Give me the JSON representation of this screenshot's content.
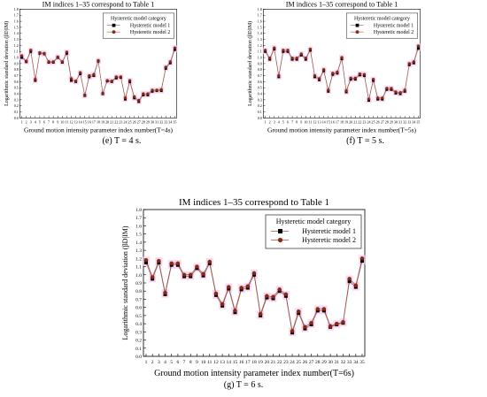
{
  "theme": {
    "series1_color": "#000000",
    "series2_color": "#8b2b0e",
    "line_color": "#a05050",
    "highlight_color": "#f7c8f0"
  },
  "chart_data": [
    {
      "type": "line",
      "title": "IM indices 1–35 correspond to Table 1",
      "xlabel": "Ground motion intensity parameter index number(T=4s)",
      "ylabel": "Logarithmic standard deviation (βD|IM)",
      "caption": "(e) T = 4 s.",
      "legend_title": "Hysteretic model category",
      "legend_position": "top-right",
      "ylim": [
        0,
        1.8
      ],
      "yticks": [
        "0.0",
        "0.1",
        "0.2",
        "0.3",
        "0.4",
        "0.5",
        "0.6",
        "0.7",
        "0.8",
        "0.9",
        "1.0",
        "1.1",
        "1.2",
        "1.3",
        "1.4",
        "1.5",
        "1.6",
        "1.7",
        "1.8"
      ],
      "x": [
        1,
        2,
        3,
        4,
        5,
        6,
        7,
        8,
        9,
        10,
        11,
        12,
        13,
        14,
        15,
        16,
        17,
        18,
        19,
        20,
        21,
        22,
        23,
        24,
        25,
        26,
        27,
        28,
        29,
        30,
        31,
        32,
        33,
        34,
        35
      ],
      "series": [
        {
          "name": "Hysteretic model 1",
          "marker": "square",
          "values": [
            1.0,
            0.93,
            1.1,
            0.62,
            1.07,
            1.06,
            0.92,
            0.92,
            1.0,
            0.92,
            1.07,
            0.62,
            0.6,
            0.73,
            0.37,
            0.68,
            0.7,
            0.94,
            0.4,
            0.61,
            0.6,
            0.66,
            0.67,
            0.31,
            0.6,
            0.33,
            0.27,
            0.38,
            0.38,
            0.44,
            0.45,
            0.45,
            0.82,
            0.91,
            1.13
          ]
        },
        {
          "name": "Hysteretic model 2",
          "marker": "circle",
          "values": [
            1.03,
            0.94,
            1.12,
            0.64,
            1.08,
            1.07,
            0.93,
            0.93,
            1.01,
            0.93,
            1.09,
            0.65,
            0.61,
            0.75,
            0.38,
            0.7,
            0.72,
            0.95,
            0.41,
            0.62,
            0.61,
            0.68,
            0.68,
            0.33,
            0.62,
            0.35,
            0.29,
            0.4,
            0.4,
            0.46,
            0.46,
            0.47,
            0.84,
            0.93,
            1.16
          ]
        }
      ]
    },
    {
      "type": "line",
      "title": "IM indices 1–35 correspond to Table 1",
      "xlabel": "Ground motion intensity parameter index number(T=5s)",
      "ylabel": "Logarithmic standard deviation (βD|IM)",
      "caption": "(f) T = 5 s.",
      "legend_title": "Hysteretic model category",
      "legend_position": "top-right",
      "ylim": [
        0,
        1.8
      ],
      "yticks": [
        "0.0",
        "0.1",
        "0.2",
        "0.3",
        "0.4",
        "0.5",
        "0.6",
        "0.7",
        "0.8",
        "0.9",
        "1.0",
        "1.1",
        "1.2",
        "1.3",
        "1.4",
        "1.5",
        "1.6",
        "1.7",
        "1.8"
      ],
      "x": [
        1,
        2,
        3,
        4,
        5,
        6,
        7,
        8,
        9,
        10,
        11,
        12,
        13,
        14,
        15,
        16,
        17,
        18,
        19,
        20,
        21,
        22,
        23,
        24,
        25,
        26,
        27,
        28,
        29,
        30,
        31,
        32,
        33,
        34,
        35
      ],
      "series": [
        {
          "name": "Hysteretic model 1",
          "marker": "square",
          "values": [
            1.1,
            0.97,
            1.14,
            0.68,
            1.1,
            1.1,
            0.97,
            0.97,
            1.04,
            0.97,
            1.12,
            0.68,
            0.63,
            0.78,
            0.44,
            0.72,
            0.74,
            0.98,
            0.43,
            0.64,
            0.64,
            0.71,
            0.7,
            0.29,
            0.62,
            0.31,
            0.31,
            0.47,
            0.47,
            0.41,
            0.4,
            0.44,
            0.88,
            0.91,
            1.15
          ]
        },
        {
          "name": "Hysteretic model 2",
          "marker": "circle",
          "values": [
            1.12,
            0.99,
            1.16,
            0.7,
            1.12,
            1.12,
            0.99,
            0.99,
            1.06,
            0.99,
            1.14,
            0.7,
            0.65,
            0.8,
            0.46,
            0.74,
            0.76,
            1.0,
            0.45,
            0.66,
            0.66,
            0.73,
            0.72,
            0.31,
            0.64,
            0.33,
            0.33,
            0.49,
            0.49,
            0.43,
            0.42,
            0.46,
            0.9,
            0.93,
            1.19
          ]
        }
      ]
    },
    {
      "type": "line",
      "title": "IM indices 1–35 correspond to Table 1",
      "xlabel": "Ground motion intensity parameter index number(T=6s)",
      "ylabel": "Logarithmic standard deviation (βD|IM)",
      "caption": "(g) T = 6 s.",
      "legend_title": "Hysteretic model category",
      "legend_position": "top-right",
      "ylim": [
        0,
        1.8
      ],
      "yticks": [
        "0.0",
        "0.1",
        "0.2",
        "0.3",
        "0.4",
        "0.5",
        "0.6",
        "0.7",
        "0.8",
        "0.9",
        "1.0",
        "1.1",
        "1.2",
        "1.3",
        "1.4",
        "1.5",
        "1.6",
        "1.7",
        "1.8"
      ],
      "x": [
        1,
        2,
        3,
        4,
        5,
        6,
        7,
        8,
        9,
        10,
        11,
        12,
        13,
        14,
        15,
        16,
        17,
        18,
        19,
        20,
        21,
        22,
        23,
        24,
        25,
        26,
        27,
        28,
        29,
        30,
        31,
        32,
        33,
        34,
        35
      ],
      "series": [
        {
          "name": "Hysteretic model 1",
          "marker": "square",
          "values": [
            1.15,
            0.95,
            1.15,
            0.76,
            1.12,
            1.12,
            0.98,
            0.98,
            1.08,
            0.99,
            1.14,
            0.75,
            0.62,
            0.83,
            0.54,
            0.82,
            0.84,
            1.0,
            0.5,
            0.72,
            0.71,
            0.8,
            0.74,
            0.29,
            0.53,
            0.34,
            0.39,
            0.56,
            0.56,
            0.36,
            0.39,
            0.41,
            0.92,
            0.85,
            1.17
          ]
        },
        {
          "name": "Hysteretic model 2",
          "marker": "circle",
          "values": [
            1.18,
            0.97,
            1.17,
            0.78,
            1.14,
            1.14,
            1.0,
            1.0,
            1.1,
            1.01,
            1.16,
            0.77,
            0.64,
            0.85,
            0.56,
            0.84,
            0.86,
            1.02,
            0.52,
            0.74,
            0.73,
            0.82,
            0.76,
            0.31,
            0.55,
            0.36,
            0.41,
            0.58,
            0.58,
            0.37,
            0.4,
            0.42,
            0.95,
            0.87,
            1.2
          ]
        }
      ]
    }
  ]
}
